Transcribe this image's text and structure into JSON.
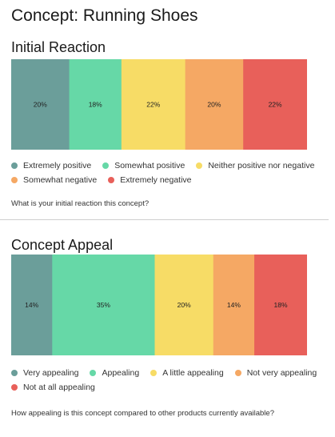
{
  "title": "Concept: Running Shoes",
  "sections": [
    {
      "title": "Initial Reaction",
      "question": "What is your initial reaction this concept?"
    },
    {
      "title": "Concept Appeal",
      "question": "How appealing is this concept compared to other products currently available?"
    }
  ],
  "chart_data": [
    {
      "type": "bar",
      "orientation": "horizontal-stacked-100",
      "title": "Initial Reaction",
      "categories": [
        "Extremely positive",
        "Somewhat positive",
        "Neither positive nor negative",
        "Somewhat negative",
        "Extremely negative"
      ],
      "values": [
        20,
        18,
        22,
        20,
        22
      ],
      "labels": [
        "20%",
        "18%",
        "22%",
        "20%",
        "22%"
      ],
      "colors": [
        "#6b9e9a",
        "#66d8a7",
        "#f7dc66",
        "#f5a864",
        "#e8605a"
      ],
      "legend": "bottom",
      "grid": false
    },
    {
      "type": "bar",
      "orientation": "horizontal-stacked-100",
      "title": "Concept Appeal",
      "categories": [
        "Very appealing",
        "Appealing",
        "A little appealing",
        "Not very appealing",
        "Not at all appealing"
      ],
      "values": [
        14,
        35,
        20,
        14,
        18
      ],
      "labels": [
        "14%",
        "35%",
        "20%",
        "14%",
        "18%"
      ],
      "colors": [
        "#6b9e9a",
        "#66d8a7",
        "#f7dc66",
        "#f5a864",
        "#e8605a"
      ],
      "legend": "bottom",
      "grid": false
    }
  ]
}
